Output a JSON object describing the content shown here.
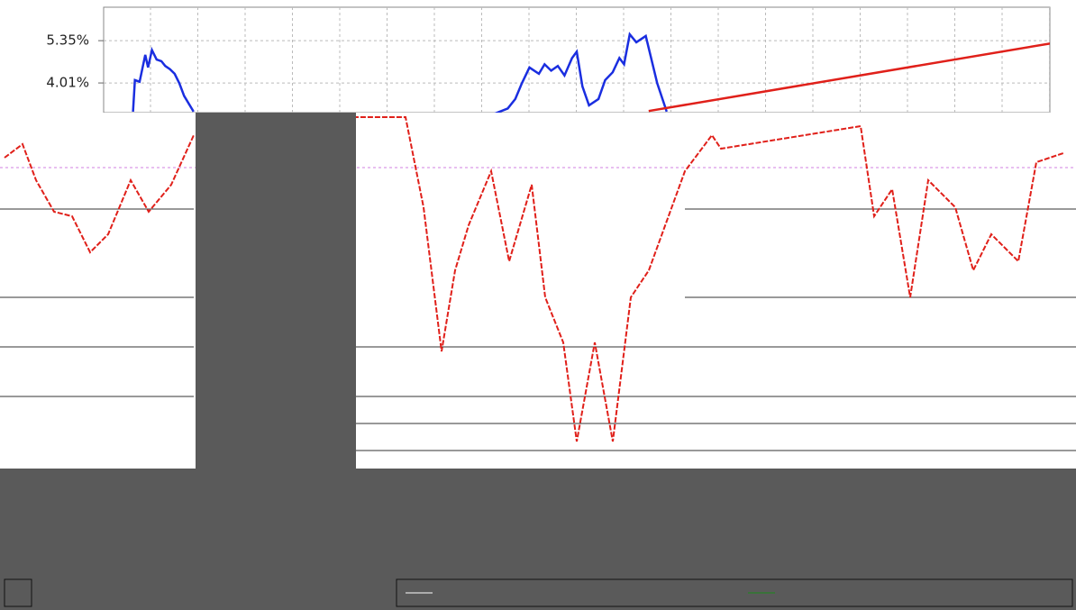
{
  "chart_data": {
    "type": "line",
    "xlim": [
      0,
      100
    ],
    "ylim": [
      3.07,
      6.41
    ],
    "yticks": [
      {
        "value": 5.35,
        "label": "5.35%"
      },
      {
        "value": 4.01,
        "label": "4.01%"
      }
    ],
    "grid": true,
    "series": [
      {
        "color": "#1a2ee0",
        "x": [
          3.1,
          3.3,
          3.8,
          4.4,
          4.7,
          5.1,
          5.6,
          6.1,
          6.5,
          7.0,
          7.5,
          8.0,
          8.5,
          9.5,
          25.0,
          41.0,
          42.7,
          43.5,
          44.2,
          45.0,
          46.0,
          46.6,
          47.3,
          48.0,
          48.7,
          49.5,
          50.0,
          50.6,
          51.3,
          52.3,
          53.0,
          53.8,
          54.5,
          55.0,
          55.6,
          56.3,
          57.3,
          58.5,
          59.5
        ],
        "values": [
          3.1,
          4.1,
          4.05,
          4.9,
          4.5,
          5.05,
          4.75,
          4.7,
          4.55,
          4.45,
          4.3,
          4.0,
          3.6,
          3.1,
          null,
          3.0,
          3.2,
          3.5,
          4.0,
          4.5,
          4.3,
          4.6,
          4.4,
          4.55,
          4.25,
          4.8,
          5.0,
          3.9,
          3.3,
          3.5,
          4.1,
          4.35,
          4.8,
          4.6,
          5.55,
          5.3,
          5.5,
          4.0,
          3.1
        ]
      },
      {
        "color": "#e0201a",
        "x": [
          57.6,
          100
        ],
        "values": [
          3.12,
          5.26
        ]
      }
    ]
  }
}
